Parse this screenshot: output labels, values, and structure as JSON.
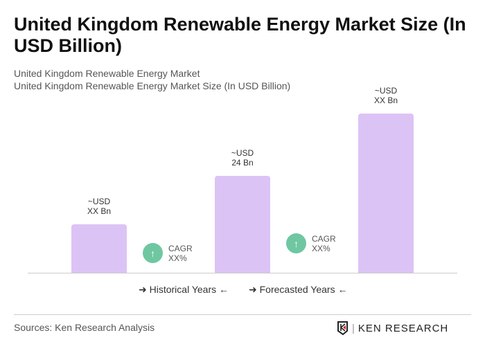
{
  "title": "United Kingdom Renewable Energy Market Size (In USD Billion)",
  "subtitle1": "United Kingdom Renewable Energy Market",
  "subtitle2": "United Kingdom Renewable Energy Market Size (In USD Billion)",
  "chart_data": {
    "type": "bar",
    "bars": [
      {
        "label": "~USD\nXX Bn",
        "value": null
      },
      {
        "label": "~USD\n24 Bn",
        "value": 24
      },
      {
        "label": "~USD\nXX Bn",
        "value": null
      }
    ],
    "cagr": [
      {
        "label": "CAGR",
        "value": "XX%"
      },
      {
        "label": "CAGR",
        "value": "XX%"
      }
    ],
    "legend": [
      "Historical Years",
      "Forecasted Years"
    ],
    "bar_color": "#dcc3f5",
    "cagr_color": "#6fc7a1"
  },
  "source": "Sources: Ken Research Analysis",
  "logo": "KEN RESEARCH"
}
